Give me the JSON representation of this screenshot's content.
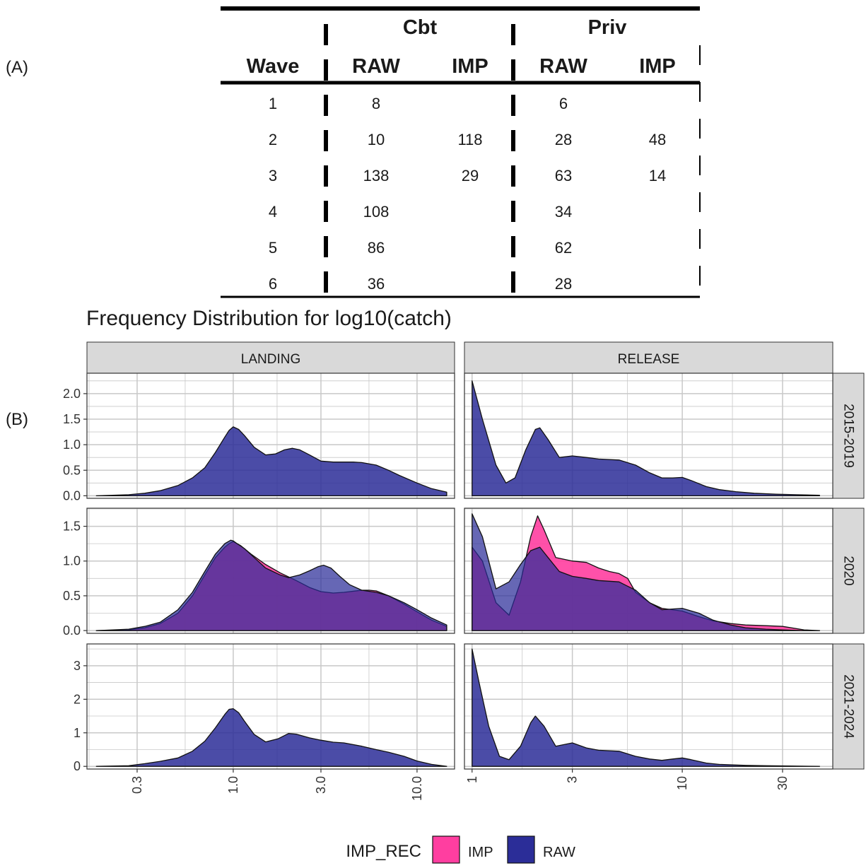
{
  "labels": {
    "a": "(A)",
    "b": "(B)"
  },
  "table": {
    "group_headers": [
      "Cbt",
      "Priv"
    ],
    "columns": [
      "Wave",
      "RAW",
      "IMP",
      "RAW",
      "IMP"
    ],
    "rows": [
      [
        "1",
        "8",
        "",
        "6",
        ""
      ],
      [
        "2",
        "10",
        "118",
        "28",
        "48"
      ],
      [
        "3",
        "138",
        "29",
        "63",
        "14"
      ],
      [
        "4",
        "108",
        "",
        "34",
        ""
      ],
      [
        "5",
        "86",
        "",
        "62",
        ""
      ],
      [
        "6",
        "36",
        "",
        "28",
        ""
      ]
    ]
  },
  "chart": {
    "title": "Frequency Distribution for log10(catch)"
  },
  "chart_data": {
    "type": "area",
    "title": "Frequency Distribution for log10(catch)",
    "x_scale": "log10",
    "facet_columns": [
      "LANDING",
      "RELEASE"
    ],
    "facet_rows": [
      "2015-2019",
      "2020",
      "2021-2024"
    ],
    "legend": {
      "title": "IMP_REC",
      "position": "bottom",
      "entries": [
        "IMP",
        "RAW"
      ]
    },
    "colors": {
      "IMP": "#ff3ea0",
      "RAW": "#2b2d98",
      "overlap": "#5a1a94",
      "strip": "#d9d9d9",
      "grid": "#c8c8c8"
    },
    "columns": [
      {
        "name": "LANDING",
        "xlim": [
          0.16,
          16
        ],
        "tick_values": [
          0.3,
          1,
          3,
          10
        ],
        "tick_labels": [
          "0.3",
          "1.0",
          "3.0",
          "10.0"
        ]
      },
      {
        "name": "RELEASE",
        "xlim": [
          0.92,
          52
        ],
        "tick_values": [
          1,
          3,
          10,
          30
        ],
        "tick_labels": [
          "1",
          "3",
          "10",
          "30"
        ]
      }
    ],
    "rows": [
      {
        "name": "2015-2019",
        "ylim": [
          -0.05,
          2.4
        ],
        "tick_values": [
          0,
          0.5,
          1,
          1.5,
          2
        ],
        "tick_labels": [
          "0.0",
          "0.5",
          "1.0",
          "1.5",
          "2.0"
        ]
      },
      {
        "name": "2020",
        "ylim": [
          -0.04,
          1.76
        ],
        "tick_values": [
          0,
          0.5,
          1,
          1.5
        ],
        "tick_labels": [
          "0.0",
          "0.5",
          "1.0",
          "1.5"
        ]
      },
      {
        "name": "2021-2024",
        "ylim": [
          -0.08,
          3.65
        ],
        "tick_values": [
          0,
          1,
          2,
          3
        ],
        "tick_labels": [
          "0",
          "1",
          "2",
          "3"
        ]
      }
    ],
    "panels": [
      {
        "column": "LANDING",
        "row": "2015-2019",
        "series": [
          {
            "name": "RAW",
            "x": [
              0.18,
              0.27,
              0.33,
              0.4,
              0.5,
              0.6,
              0.7,
              0.8,
              0.9,
              0.95,
              1.0,
              1.07,
              1.15,
              1.3,
              1.5,
              1.7,
              1.9,
              2.1,
              2.3,
              2.6,
              3.0,
              3.5,
              4.0,
              4.5,
              5.0,
              6.0,
              7.0,
              8.0,
              10.0,
              12.0,
              14.5
            ],
            "y": [
              0.0,
              0.02,
              0.05,
              0.1,
              0.2,
              0.35,
              0.55,
              0.85,
              1.15,
              1.28,
              1.35,
              1.3,
              1.18,
              0.95,
              0.8,
              0.82,
              0.9,
              0.93,
              0.9,
              0.8,
              0.68,
              0.66,
              0.66,
              0.66,
              0.65,
              0.6,
              0.5,
              0.4,
              0.25,
              0.14,
              0.07
            ]
          }
        ]
      },
      {
        "column": "LANDING",
        "row": "2020",
        "series": [
          {
            "name": "RAW",
            "x": [
              0.18,
              0.27,
              0.33,
              0.4,
              0.5,
              0.6,
              0.7,
              0.8,
              0.9,
              0.97,
              1.0,
              1.05,
              1.15,
              1.3,
              1.5,
              1.8,
              2.0,
              2.3,
              2.6,
              2.9,
              3.1,
              3.4,
              3.8,
              4.3,
              5.0,
              6.0,
              7.0,
              8.5,
              10.0,
              12.0,
              14.5
            ],
            "y": [
              0.0,
              0.02,
              0.06,
              0.12,
              0.3,
              0.55,
              0.85,
              1.1,
              1.25,
              1.3,
              1.29,
              1.25,
              1.18,
              1.05,
              0.9,
              0.8,
              0.76,
              0.8,
              0.86,
              0.92,
              0.94,
              0.9,
              0.78,
              0.66,
              0.58,
              0.55,
              0.5,
              0.4,
              0.3,
              0.18,
              0.08
            ]
          },
          {
            "name": "IMP",
            "x": [
              0.18,
              0.27,
              0.33,
              0.4,
              0.5,
              0.6,
              0.7,
              0.8,
              0.9,
              0.95,
              1.0,
              1.1,
              1.25,
              1.5,
              1.8,
              2.2,
              2.6,
              3.0,
              3.5,
              4.0,
              5.0,
              5.5,
              6.0,
              7.0,
              8.5,
              10.0,
              12.0,
              14.5
            ],
            "y": [
              0.0,
              0.01,
              0.04,
              0.1,
              0.25,
              0.5,
              0.8,
              1.05,
              1.2,
              1.25,
              1.28,
              1.22,
              1.1,
              0.95,
              0.83,
              0.72,
              0.62,
              0.56,
              0.54,
              0.55,
              0.58,
              0.58,
              0.57,
              0.5,
              0.38,
              0.27,
              0.15,
              0.06
            ]
          }
        ]
      },
      {
        "column": "LANDING",
        "row": "2021-2024",
        "series": [
          {
            "name": "RAW",
            "x": [
              0.18,
              0.27,
              0.33,
              0.4,
              0.5,
              0.6,
              0.7,
              0.8,
              0.9,
              0.95,
              1.0,
              1.07,
              1.15,
              1.3,
              1.5,
              1.75,
              2.0,
              2.2,
              2.6,
              3.0,
              3.5,
              4.0,
              5.0,
              6.0,
              7.0,
              8.5,
              10.0,
              12.0,
              14.5
            ],
            "y": [
              0.0,
              0.02,
              0.08,
              0.15,
              0.25,
              0.45,
              0.75,
              1.15,
              1.55,
              1.7,
              1.72,
              1.6,
              1.35,
              0.95,
              0.73,
              0.82,
              0.98,
              0.96,
              0.85,
              0.78,
              0.72,
              0.7,
              0.6,
              0.5,
              0.42,
              0.3,
              0.16,
              0.06,
              0.0
            ]
          }
        ]
      },
      {
        "column": "RELEASE",
        "row": "2015-2019",
        "series": [
          {
            "name": "RAW",
            "x": [
              1.0,
              1.12,
              1.3,
              1.45,
              1.6,
              1.8,
              2.0,
              2.1,
              2.3,
              2.6,
              3.0,
              3.5,
              4.0,
              5.0,
              6.0,
              7.0,
              8.0,
              9.0,
              10.0,
              11.0,
              13.0,
              15.0,
              18.0,
              22.0,
              28.0,
              35.0,
              45.0
            ],
            "y": [
              2.25,
              1.5,
              0.6,
              0.25,
              0.35,
              0.9,
              1.3,
              1.33,
              1.1,
              0.75,
              0.78,
              0.75,
              0.72,
              0.7,
              0.6,
              0.45,
              0.35,
              0.35,
              0.36,
              0.3,
              0.18,
              0.12,
              0.08,
              0.05,
              0.03,
              0.02,
              0.01
            ]
          }
        ]
      },
      {
        "column": "RELEASE",
        "row": "2020",
        "series": [
          {
            "name": "RAW",
            "x": [
              1.0,
              1.12,
              1.3,
              1.5,
              1.7,
              1.9,
              2.1,
              2.3,
              2.6,
              3.0,
              3.5,
              4.0,
              5.0,
              6.0,
              7.0,
              8.0,
              10.0,
              12.0,
              14.0,
              17.0,
              20.0,
              25.0,
              30.0,
              38.0,
              45.0
            ],
            "y": [
              1.68,
              1.35,
              0.6,
              0.7,
              0.95,
              1.15,
              1.2,
              1.05,
              0.85,
              0.78,
              0.75,
              0.72,
              0.7,
              0.58,
              0.4,
              0.3,
              0.32,
              0.25,
              0.15,
              0.08,
              0.04,
              0.02,
              0.01,
              0.0,
              0.0
            ]
          },
          {
            "name": "IMP",
            "x": [
              1.0,
              1.12,
              1.3,
              1.5,
              1.7,
              1.9,
              2.05,
              2.2,
              2.5,
              3.0,
              3.5,
              4.0,
              4.5,
              5.0,
              5.5,
              6.0,
              7.0,
              8.0,
              10.0,
              12.0,
              14.0,
              17.0,
              20.0,
              25.0,
              30.0,
              38.0,
              45.0
            ],
            "y": [
              1.2,
              1.0,
              0.4,
              0.22,
              0.7,
              1.35,
              1.65,
              1.45,
              1.05,
              1.0,
              0.98,
              0.9,
              0.85,
              0.82,
              0.75,
              0.55,
              0.4,
              0.32,
              0.28,
              0.2,
              0.14,
              0.1,
              0.08,
              0.07,
              0.06,
              0.01,
              0.0
            ]
          }
        ]
      },
      {
        "column": "RELEASE",
        "row": "2021-2024",
        "series": [
          {
            "name": "RAW",
            "x": [
              1.0,
              1.08,
              1.2,
              1.35,
              1.5,
              1.7,
              1.9,
              2.0,
              2.2,
              2.5,
              3.0,
              3.5,
              4.0,
              5.0,
              6.0,
              7.0,
              8.0,
              9.0,
              10.0,
              11.0,
              13.0,
              15.0,
              20.0,
              25.0,
              32.0,
              45.0
            ],
            "y": [
              3.5,
              2.5,
              1.2,
              0.3,
              0.2,
              0.6,
              1.3,
              1.5,
              1.2,
              0.6,
              0.7,
              0.55,
              0.48,
              0.45,
              0.3,
              0.22,
              0.18,
              0.22,
              0.25,
              0.2,
              0.1,
              0.06,
              0.03,
              0.02,
              0.01,
              0.0
            ]
          }
        ]
      }
    ]
  },
  "table_layout_note": ""
}
